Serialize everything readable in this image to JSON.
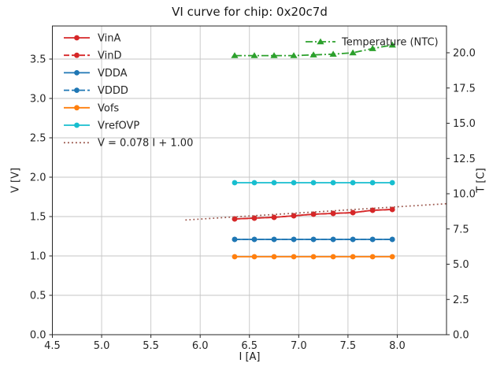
{
  "chart_data": {
    "type": "line",
    "title": "VI curve for chip: 0x20c7d",
    "xlabel": "I [A]",
    "ylabel_left": "V [V]",
    "ylabel_right": "T [C]",
    "grid": true,
    "xlim": [
      4.5,
      8.5
    ],
    "ylim_left": [
      0.0,
      3.92
    ],
    "ylim_right": [
      0.0,
      21.9
    ],
    "xticks": [
      4.5,
      5.0,
      5.5,
      6.0,
      6.5,
      7.0,
      7.5,
      8.0
    ],
    "yticks_left": [
      0.0,
      0.5,
      1.0,
      1.5,
      2.0,
      2.5,
      3.0,
      3.5
    ],
    "yticks_right": [
      0.0,
      2.5,
      5.0,
      7.5,
      10.0,
      12.5,
      15.0,
      17.5,
      20.0
    ],
    "x": [
      6.35,
      6.55,
      6.75,
      6.95,
      7.15,
      7.35,
      7.55,
      7.75,
      7.95
    ],
    "series": [
      {
        "name": "VinA",
        "axis": "left",
        "color": "#d62728",
        "style": "solid",
        "marker": "circle",
        "values": [
          1.47,
          1.48,
          1.49,
          1.51,
          1.53,
          1.54,
          1.55,
          1.58,
          1.59
        ]
      },
      {
        "name": "VinD",
        "axis": "left",
        "color": "#d62728",
        "style": "dashed",
        "marker": "circle",
        "values": [
          1.47,
          1.48,
          1.49,
          1.51,
          1.53,
          1.54,
          1.55,
          1.58,
          1.59
        ]
      },
      {
        "name": "VDDA",
        "axis": "left",
        "color": "#1f77b4",
        "style": "solid",
        "marker": "circle",
        "values": [
          1.21,
          1.21,
          1.21,
          1.21,
          1.21,
          1.21,
          1.21,
          1.21,
          1.21
        ]
      },
      {
        "name": "VDDD",
        "axis": "left",
        "color": "#1f77b4",
        "style": "dashed",
        "marker": "circle",
        "values": [
          1.21,
          1.21,
          1.21,
          1.21,
          1.21,
          1.21,
          1.21,
          1.21,
          1.21
        ]
      },
      {
        "name": "Vofs",
        "axis": "left",
        "color": "#ff7f0e",
        "style": "solid",
        "marker": "circle",
        "values": [
          0.99,
          0.99,
          0.99,
          0.99,
          0.99,
          0.99,
          0.99,
          0.99,
          0.99
        ]
      },
      {
        "name": "VrefOVP",
        "axis": "left",
        "color": "#17becf",
        "style": "solid",
        "marker": "circle",
        "values": [
          1.93,
          1.93,
          1.93,
          1.93,
          1.93,
          1.93,
          1.93,
          1.93,
          1.93
        ]
      },
      {
        "name": "Temperature (NTC)",
        "axis": "right",
        "color": "#2ca02c",
        "style": "dashdot",
        "marker": "triangle",
        "values": [
          19.8,
          19.8,
          19.8,
          19.8,
          19.85,
          19.9,
          20.0,
          20.3,
          20.55
        ]
      }
    ],
    "trend": {
      "label": "V = 0.078 I + 1.00",
      "color": "#9c584e",
      "style": "dotted",
      "slope": 0.078,
      "intercept": 1.0,
      "x_start": 5.85,
      "x_end": 8.5
    },
    "legend_left": [
      "VinA",
      "VinD",
      "VDDA",
      "VDDD",
      "Vofs",
      "VrefOVP",
      "V = 0.078 I + 1.00"
    ],
    "legend_right": [
      "Temperature (NTC)"
    ],
    "grid_color": "#c6c6c6",
    "spine_color": "#262626"
  }
}
